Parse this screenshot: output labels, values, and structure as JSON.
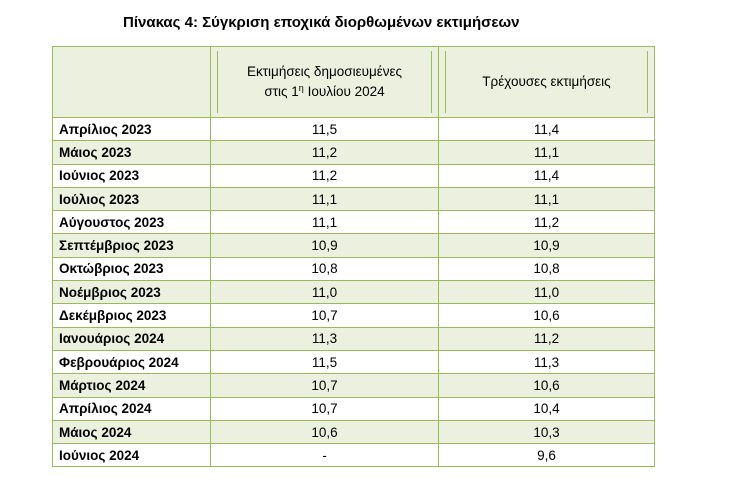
{
  "title": "Πίνακας 4: Σύγκριση εποχικά διορθωμένων εκτιμήσεων",
  "table": {
    "col1_header_line1": "Εκτιμήσεις δημοσιευμένες",
    "col1_header_line2_pre": "στις 1",
    "col1_header_sup": "η",
    "col1_header_line2_post": " Ιουλίου 2024",
    "col2_header": "Τρέχουσες εκτιμήσεις",
    "rows": [
      {
        "month": "Απρίλιος 2023",
        "published": "11,5",
        "current": "11,4"
      },
      {
        "month": "Μάιος 2023",
        "published": "11,2",
        "current": "11,1"
      },
      {
        "month": "Ιούνιος 2023",
        "published": "11,2",
        "current": "11,4"
      },
      {
        "month": "Ιούλιος 2023",
        "published": "11,1",
        "current": "11,1"
      },
      {
        "month": "Αύγουστος 2023",
        "published": "11,1",
        "current": "11,2"
      },
      {
        "month": "Σεπτέμβριος 2023",
        "published": "10,9",
        "current": "10,9"
      },
      {
        "month": "Οκτώβριος 2023",
        "published": "10,8",
        "current": "10,8"
      },
      {
        "month": "Νοέμβριος 2023",
        "published": "11,0",
        "current": "11,0"
      },
      {
        "month": "Δεκέμβριος 2023",
        "published": "10,7",
        "current": "10,6"
      },
      {
        "month": "Ιανουάριος 2024",
        "published": "11,3",
        "current": "11,2"
      },
      {
        "month": "Φεβρουάριος 2024",
        "published": "11,5",
        "current": "11,3"
      },
      {
        "month": "Μάρτιος 2024",
        "published": "10,7",
        "current": "10,6"
      },
      {
        "month": "Απρίλιος 2024",
        "published": "10,7",
        "current": "10,4"
      },
      {
        "month": "Μάιος 2024",
        "published": "10,6",
        "current": "10,3"
      },
      {
        "month": "Ιούνιος 2024",
        "published": "-",
        "current": "9,6"
      }
    ]
  }
}
